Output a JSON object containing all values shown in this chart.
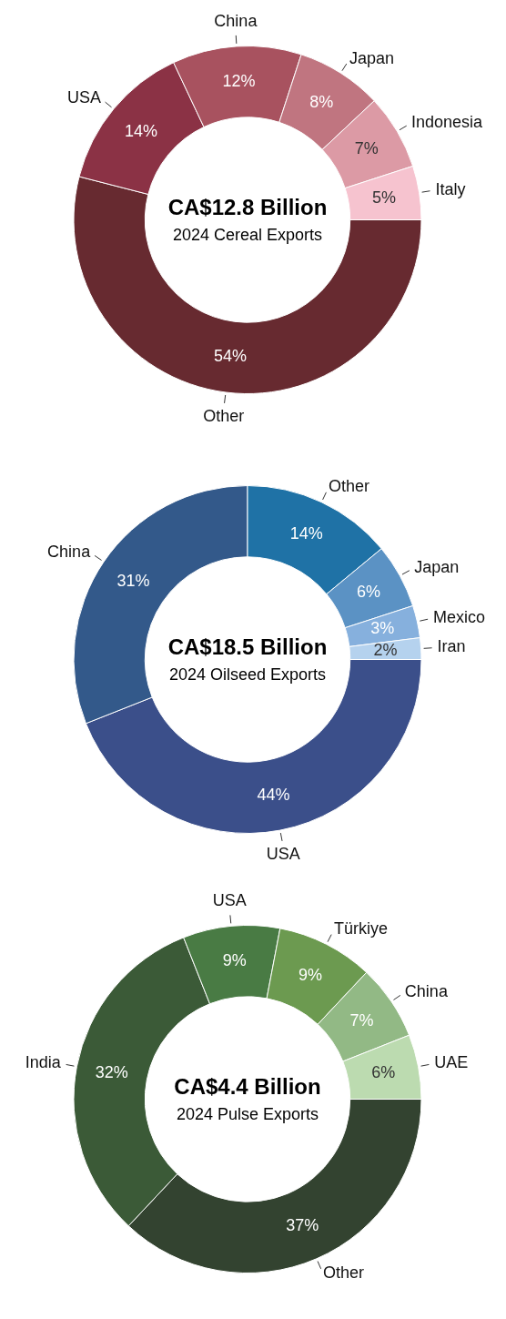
{
  "chart_data": [
    {
      "type": "donut",
      "title": "CA$12.8 Billion",
      "subtitle": "2024 Cereal Exports",
      "categories": [
        "Other",
        "USA",
        "China",
        "Japan",
        "Indonesia",
        "Italy"
      ],
      "values": [
        54,
        14,
        12,
        8,
        7,
        5
      ],
      "value_labels": [
        "54%",
        "14%",
        "12%",
        "8%",
        "7%",
        "5%"
      ],
      "colors": [
        "#672a30",
        "#8b3245",
        "#a8525f",
        "#c07580",
        "#dc9aa5",
        "#f6c3cf"
      ],
      "legend": false
    },
    {
      "type": "donut",
      "title": "CA$18.5 Billion",
      "subtitle": "2024 Oilseed Exports",
      "categories": [
        "USA",
        "China",
        "Other",
        "Japan",
        "Mexico",
        "Iran"
      ],
      "values": [
        44,
        31,
        14,
        6,
        3,
        2
      ],
      "value_labels": [
        "44%",
        "31%",
        "14%",
        "6%",
        "3%",
        "2%"
      ],
      "colors": [
        "#3b4f8a",
        "#33598a",
        "#1f72a6",
        "#5b92c4",
        "#86b0dd",
        "#b5d2ee"
      ],
      "legend": false
    },
    {
      "type": "donut",
      "title": "CA$4.4 Billion",
      "subtitle": "2024 Pulse Exports",
      "categories": [
        "Other",
        "India",
        "USA",
        "Türkiye",
        "China",
        "UAE"
      ],
      "values": [
        37,
        32,
        9,
        9,
        7,
        6
      ],
      "value_labels": [
        "37%",
        "32%",
        "9%",
        "9%",
        "7%",
        "6%"
      ],
      "colors": [
        "#334330",
        "#3b5a37",
        "#497b44",
        "#6c9a50",
        "#92b985",
        "#bcdbb0"
      ],
      "legend": false
    }
  ]
}
